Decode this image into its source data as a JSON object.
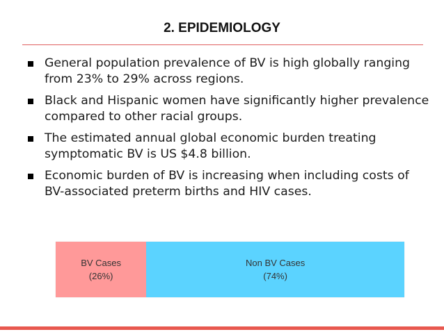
{
  "slide": {
    "title": "2. EPIDEMIOLOGY",
    "bullets": [
      "General population prevalence of BV is high globally ranging from 23% to 29% across regions.",
      "Black and Hispanic women have significantly higher prevalence compared to other racial groups.",
      "The estimated annual global economic burden treating symptomatic BV is US $4.8 billion.",
      "Economic burden of BV is increasing when including costs of BV-associated preterm births and HIV cases."
    ]
  },
  "proportion_bar": {
    "segments": [
      {
        "label": "BV Cases",
        "pct_label": "(26%)",
        "value": 26,
        "color": "#ff9999"
      },
      {
        "label": "Non BV Cases",
        "pct_label": "(74%)",
        "value": 74,
        "color": "#5bd3ff"
      }
    ]
  },
  "colors": {
    "accent_rule": "#e8584f",
    "title_rule": "#e06060"
  }
}
